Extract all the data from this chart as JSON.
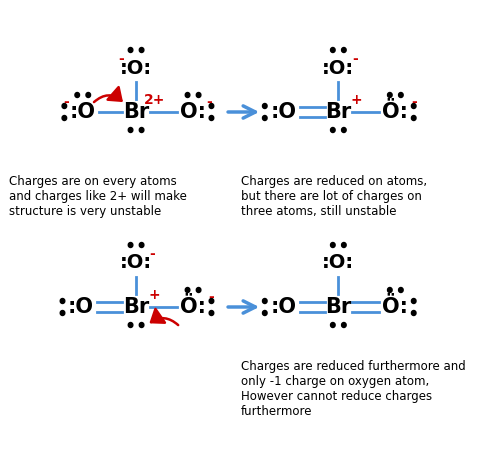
{
  "bg_color": "#ffffff",
  "atom_color": "#000000",
  "bond_color": "#4a90d9",
  "charge_color": "#cc0000",
  "arrow_color": "#4a90d9",
  "curved_arrow_color": "#cc0000",
  "label_tl": "Charges are on every atoms\nand charges like 2+ will make\nstructure is very unstable",
  "label_tr": "Charges are reduced on atoms,\nbut there are lot of charges on\nthree atoms, still unstable",
  "label_br": "Charges are reduced furthermore and\nonly -1 charge on oxygen atom,\nHowever cannot reduce charges\nfurthermore"
}
